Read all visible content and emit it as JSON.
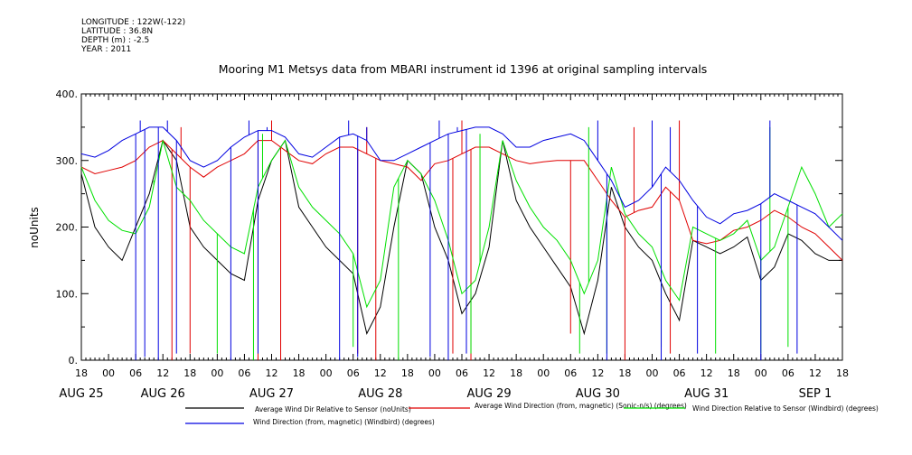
{
  "meta": {
    "longitude": "LONGITUDE : 122W(-122)",
    "latitude": "LATITUDE : 36.8N",
    "depth": "DEPTH (m) : -2.5",
    "year": "YEAR : 2011"
  },
  "chart_data": {
    "type": "line",
    "title": "Mooring M1 Metsys data from MBARI instrument id 1396 at original sampling intervals",
    "ylabel": "noUnits",
    "ylim": [
      0,
      400
    ],
    "yticks": [
      0,
      100,
      200,
      300,
      400
    ],
    "ytick_labels": [
      "0.",
      "100.",
      "200.",
      "300.",
      "400."
    ],
    "x_unit": "hours from AUG 25 18:00, 2011",
    "xlim": [
      0,
      168
    ],
    "xtick_hours": [
      "18",
      "00",
      "06",
      "12",
      "18",
      "00",
      "06",
      "12",
      "18",
      "00",
      "06",
      "12",
      "18",
      "00",
      "06",
      "12",
      "18",
      "00",
      "06",
      "12",
      "18",
      "00",
      "06",
      "12",
      "18",
      "00",
      "06",
      "12",
      "18"
    ],
    "dates": [
      {
        "label": "AUG 25",
        "hour": 0
      },
      {
        "label": "AUG 26",
        "hour": 18
      },
      {
        "label": "AUG 27",
        "hour": 42
      },
      {
        "label": "AUG 28",
        "hour": 66
      },
      {
        "label": "AUG 29",
        "hour": 90
      },
      {
        "label": "AUG 30",
        "hour": 114
      },
      {
        "label": "AUG 31",
        "hour": 138
      },
      {
        "label": "SEP 1",
        "hour": 162
      }
    ],
    "series": [
      {
        "name": "Average Wind Dir Relative to Sensor (noUnits)",
        "color": "#000000",
        "x": [
          0,
          3,
          6,
          9,
          12,
          15,
          18,
          21,
          24,
          27,
          30,
          33,
          36,
          39,
          42,
          45,
          48,
          51,
          54,
          57,
          60,
          63,
          66,
          69,
          72,
          75,
          78,
          81,
          84,
          87,
          90,
          93,
          96,
          99,
          102,
          105,
          108,
          111,
          114,
          117,
          120,
          123,
          126,
          129,
          132,
          135,
          138,
          141,
          144,
          147,
          150,
          153,
          156,
          159,
          162,
          165,
          168
        ],
        "y": [
          280,
          200,
          170,
          150,
          200,
          250,
          330,
          300,
          200,
          170,
          150,
          130,
          120,
          240,
          300,
          330,
          230,
          200,
          170,
          150,
          130,
          40,
          80,
          200,
          300,
          280,
          200,
          150,
          70,
          100,
          170,
          330,
          240,
          200,
          170,
          140,
          110,
          40,
          120,
          260,
          200,
          170,
          150,
          100,
          60,
          180,
          170,
          160,
          170,
          185,
          120,
          140,
          190,
          180,
          160,
          150,
          150
        ],
        "spikes": []
      },
      {
        "name": "Average Wind Direction (from, magnetic) (Sonic-n/s) (degrees)",
        "color": "#e00000",
        "x": [
          0,
          3,
          6,
          9,
          12,
          15,
          18,
          21,
          24,
          27,
          30,
          33,
          36,
          39,
          42,
          45,
          48,
          51,
          54,
          57,
          60,
          63,
          66,
          69,
          72,
          75,
          78,
          81,
          84,
          87,
          90,
          93,
          96,
          99,
          102,
          105,
          108,
          111,
          114,
          117,
          120,
          123,
          126,
          129,
          132,
          135,
          138,
          141,
          144,
          147,
          150,
          153,
          156,
          159,
          162,
          165,
          168
        ],
        "y": [
          290,
          280,
          285,
          290,
          300,
          320,
          330,
          310,
          290,
          275,
          290,
          300,
          310,
          330,
          330,
          315,
          300,
          295,
          310,
          320,
          320,
          310,
          300,
          295,
          290,
          270,
          295,
          300,
          310,
          320,
          320,
          310,
          300,
          295,
          298,
          300,
          300,
          300,
          270,
          240,
          215,
          225,
          230,
          260,
          240,
          180,
          175,
          180,
          195,
          200,
          210,
          225,
          215,
          200,
          190,
          170,
          150
        ],
        "spikes": [
          [
            20,
            0
          ],
          [
            22,
            350
          ],
          [
            24,
            10
          ],
          [
            39,
            0
          ],
          [
            42,
            360
          ],
          [
            44,
            0
          ],
          [
            61,
            10
          ],
          [
            63,
            350
          ],
          [
            65,
            0
          ],
          [
            82,
            10
          ],
          [
            84,
            360
          ],
          [
            86,
            0
          ],
          [
            108,
            40
          ],
          [
            120,
            0
          ],
          [
            122,
            350
          ],
          [
            130,
            10
          ],
          [
            132,
            360
          ]
        ]
      },
      {
        "name": "Wind Direction Relative to Sensor (Windbird) (degrees)",
        "color": "#00e000",
        "x": [
          0,
          3,
          6,
          9,
          12,
          15,
          18,
          21,
          24,
          27,
          30,
          33,
          36,
          39,
          42,
          45,
          48,
          51,
          54,
          57,
          60,
          63,
          66,
          69,
          72,
          75,
          78,
          81,
          84,
          87,
          90,
          93,
          96,
          99,
          102,
          105,
          108,
          111,
          114,
          117,
          120,
          123,
          126,
          129,
          132,
          135,
          138,
          141,
          144,
          147,
          150,
          153,
          156,
          159,
          162,
          165,
          168
        ],
        "y": [
          290,
          240,
          210,
          195,
          190,
          230,
          330,
          260,
          240,
          210,
          190,
          170,
          160,
          260,
          300,
          330,
          260,
          230,
          210,
          190,
          160,
          80,
          120,
          260,
          300,
          280,
          240,
          180,
          100,
          120,
          200,
          330,
          270,
          230,
          200,
          180,
          150,
          100,
          150,
          290,
          220,
          190,
          170,
          120,
          90,
          200,
          190,
          180,
          190,
          210,
          150,
          170,
          230,
          290,
          250,
          200,
          220
        ],
        "spikes": [
          [
            16,
            270
          ],
          [
            30,
            10
          ],
          [
            38,
            0
          ],
          [
            40,
            340
          ],
          [
            60,
            20
          ],
          [
            70,
            0
          ],
          [
            86,
            10
          ],
          [
            88,
            340
          ],
          [
            110,
            10
          ],
          [
            112,
            350
          ],
          [
            116,
            10
          ],
          [
            128,
            20
          ],
          [
            140,
            10
          ],
          [
            150,
            10
          ],
          [
            152,
            350
          ],
          [
            156,
            20
          ]
        ]
      },
      {
        "name": "Wind Direction (from, magnetic) (Windbird) (degrees)",
        "color": "#0000e0",
        "x": [
          0,
          3,
          6,
          9,
          12,
          15,
          18,
          21,
          24,
          27,
          30,
          33,
          36,
          39,
          42,
          45,
          48,
          51,
          54,
          57,
          60,
          63,
          66,
          69,
          72,
          75,
          78,
          81,
          84,
          87,
          90,
          93,
          96,
          99,
          102,
          105,
          108,
          111,
          114,
          117,
          120,
          123,
          126,
          129,
          132,
          135,
          138,
          141,
          144,
          147,
          150,
          153,
          156,
          159,
          162,
          165,
          168
        ],
        "y": [
          310,
          305,
          315,
          330,
          340,
          350,
          350,
          330,
          300,
          290,
          300,
          320,
          335,
          345,
          345,
          335,
          310,
          305,
          320,
          335,
          340,
          330,
          300,
          300,
          310,
          320,
          330,
          340,
          345,
          350,
          350,
          340,
          320,
          320,
          330,
          335,
          340,
          330,
          300,
          270,
          230,
          240,
          260,
          290,
          270,
          240,
          215,
          205,
          220,
          225,
          235,
          250,
          240,
          230,
          220,
          200,
          180
        ],
        "spikes": [
          [
            12,
            0
          ],
          [
            13,
            360
          ],
          [
            14,
            5
          ],
          [
            15,
            350
          ],
          [
            17,
            0
          ],
          [
            19,
            360
          ],
          [
            21,
            10
          ],
          [
            33,
            0
          ],
          [
            37,
            360
          ],
          [
            39,
            10
          ],
          [
            41,
            350
          ],
          [
            57,
            0
          ],
          [
            59,
            360
          ],
          [
            61,
            5
          ],
          [
            63,
            350
          ],
          [
            77,
            5
          ],
          [
            79,
            360
          ],
          [
            81,
            0
          ],
          [
            83,
            350
          ],
          [
            85,
            10
          ],
          [
            114,
            360
          ],
          [
            116,
            0
          ],
          [
            126,
            360
          ],
          [
            128,
            0
          ],
          [
            130,
            350
          ],
          [
            136,
            10
          ],
          [
            150,
            0
          ],
          [
            152,
            360
          ],
          [
            158,
            10
          ]
        ]
      }
    ]
  }
}
